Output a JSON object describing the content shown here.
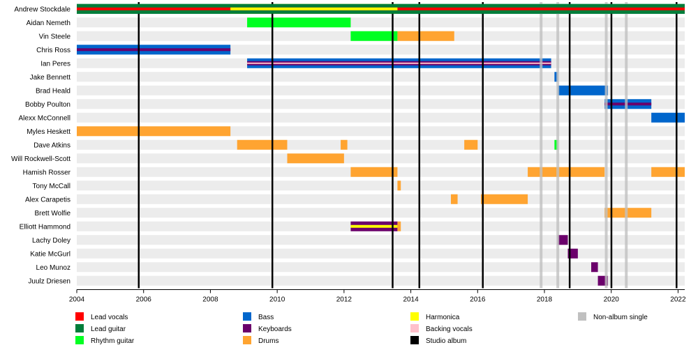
{
  "chart_data": {
    "type": "timeline",
    "title": "",
    "x_axis": {
      "min": 2004,
      "max": 2022.2,
      "ticks": [
        2004,
        2006,
        2008,
        2010,
        2012,
        2014,
        2016,
        2018,
        2020,
        2022
      ]
    },
    "colors": {
      "lead_vocals": "#ff0000",
      "lead_guitar": "#007d3a",
      "rhythm_guitar": "#00ff22",
      "bass": "#0066cc",
      "keyboards": "#6b006b",
      "drums": "#ffa431",
      "harmonica": "#ffff00",
      "backing_vocals": "#ffc0cb",
      "studio_album": "#000000",
      "non_album_single": "#c0c0c0"
    },
    "members": [
      {
        "name": "Andrew Stockdale",
        "stints": [
          {
            "start": 2004,
            "end": 2022.2,
            "roles": [
              "lead_guitar",
              "lead_vocals"
            ]
          },
          {
            "start": 2008.6,
            "end": 2013.6,
            "roles": [
              "harmonica"
            ]
          }
        ]
      },
      {
        "name": "Aidan Nemeth",
        "stints": [
          {
            "start": 2009.1,
            "end": 2012.2,
            "roles": [
              "rhythm_guitar"
            ]
          }
        ]
      },
      {
        "name": "Vin Steele",
        "stints": [
          {
            "start": 2012.2,
            "end": 2013.6,
            "roles": [
              "rhythm_guitar"
            ]
          },
          {
            "start": 2013.6,
            "end": 2015.3,
            "roles": [
              "drums"
            ]
          }
        ]
      },
      {
        "name": "Chris Ross",
        "stints": [
          {
            "start": 2004,
            "end": 2008.6,
            "roles": [
              "bass",
              "keyboards"
            ]
          }
        ]
      },
      {
        "name": "Ian Peres",
        "stints": [
          {
            "start": 2009.1,
            "end": 2018.2,
            "roles": [
              "bass",
              "keyboards",
              "backing_vocals"
            ]
          }
        ]
      },
      {
        "name": "Jake Bennett",
        "stints": [
          {
            "start": 2018.3,
            "end": 2018.4,
            "roles": [
              "bass"
            ]
          }
        ]
      },
      {
        "name": "Brad Heald",
        "stints": [
          {
            "start": 2018.4,
            "end": 2019.9,
            "roles": [
              "bass"
            ]
          }
        ]
      },
      {
        "name": "Bobby Poulton",
        "stints": [
          {
            "start": 2019.8,
            "end": 2021.2,
            "roles": [
              "bass",
              "keyboards"
            ]
          }
        ]
      },
      {
        "name": "Alexx McConnell",
        "stints": [
          {
            "start": 2021.2,
            "end": 2022.2,
            "roles": [
              "bass"
            ]
          }
        ]
      },
      {
        "name": "Myles Heskett",
        "stints": [
          {
            "start": 2004,
            "end": 2008.6,
            "roles": [
              "drums"
            ]
          }
        ]
      },
      {
        "name": "Dave Atkins",
        "stints": [
          {
            "start": 2008.8,
            "end": 2010.3,
            "roles": [
              "drums"
            ]
          },
          {
            "start": 2011.9,
            "end": 2012.1,
            "roles": [
              "drums"
            ]
          },
          {
            "start": 2015.6,
            "end": 2016.0,
            "roles": [
              "drums"
            ]
          },
          {
            "start": 2018.3,
            "end": 2018.4,
            "roles": [
              "rhythm_guitar"
            ]
          }
        ]
      },
      {
        "name": "Will Rockwell-Scott",
        "stints": [
          {
            "start": 2010.3,
            "end": 2012.0,
            "roles": [
              "drums"
            ]
          }
        ]
      },
      {
        "name": "Hamish Rosser",
        "stints": [
          {
            "start": 2012.2,
            "end": 2013.6,
            "roles": [
              "drums"
            ]
          },
          {
            "start": 2017.5,
            "end": 2019.8,
            "roles": [
              "drums"
            ]
          },
          {
            "start": 2021.2,
            "end": 2022.2,
            "roles": [
              "drums"
            ]
          }
        ]
      },
      {
        "name": "Tony McCall",
        "stints": [
          {
            "start": 2013.6,
            "end": 2013.7,
            "roles": [
              "drums"
            ]
          }
        ]
      },
      {
        "name": "Alex Carapetis",
        "stints": [
          {
            "start": 2015.2,
            "end": 2015.4,
            "roles": [
              "drums"
            ]
          },
          {
            "start": 2016.1,
            "end": 2017.5,
            "roles": [
              "drums"
            ]
          }
        ]
      },
      {
        "name": "Brett Wolfie",
        "stints": [
          {
            "start": 2019.8,
            "end": 2021.2,
            "roles": [
              "drums"
            ]
          }
        ]
      },
      {
        "name": "Elliott Hammond",
        "stints": [
          {
            "start": 2012.2,
            "end": 2013.6,
            "roles": [
              "keyboards",
              "harmonica"
            ]
          },
          {
            "start": 2013.6,
            "end": 2013.7,
            "roles": [
              "drums"
            ]
          }
        ]
      },
      {
        "name": "Lachy Doley",
        "stints": [
          {
            "start": 2018.4,
            "end": 2018.7,
            "roles": [
              "keyboards"
            ]
          }
        ]
      },
      {
        "name": "Katie McGurl",
        "stints": [
          {
            "start": 2018.7,
            "end": 2019.0,
            "roles": [
              "keyboards"
            ]
          }
        ]
      },
      {
        "name": "Leo Munoz",
        "stints": [
          {
            "start": 2019.4,
            "end": 2019.6,
            "roles": [
              "keyboards"
            ]
          }
        ]
      },
      {
        "name": "Juulz Driesen",
        "stints": [
          {
            "start": 2019.6,
            "end": 2019.9,
            "roles": [
              "keyboards"
            ]
          }
        ]
      }
    ],
    "studio_albums": [
      2005.85,
      2009.85,
      2013.45,
      2014.25,
      2016.15,
      2018.75,
      2020.0,
      2021.95
    ],
    "non_album_singles": [
      2017.9,
      2018.4,
      2019.85,
      2020.45
    ],
    "legend": [
      {
        "key": "lead_vocals",
        "label": "Lead vocals"
      },
      {
        "key": "lead_guitar",
        "label": "Lead guitar"
      },
      {
        "key": "rhythm_guitar",
        "label": "Rhythm guitar"
      },
      {
        "key": "bass",
        "label": "Bass"
      },
      {
        "key": "keyboards",
        "label": "Keyboards"
      },
      {
        "key": "drums",
        "label": "Drums"
      },
      {
        "key": "harmonica",
        "label": "Harmonica"
      },
      {
        "key": "backing_vocals",
        "label": "Backing vocals"
      },
      {
        "key": "studio_album",
        "label": "Studio album"
      },
      {
        "key": "non_album_single",
        "label": "Non-album single"
      }
    ]
  }
}
